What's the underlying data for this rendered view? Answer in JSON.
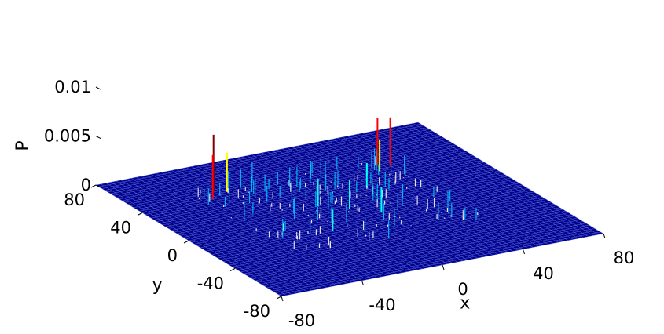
{
  "chart_data": {
    "type": "surface",
    "title": "",
    "xlabel": "x",
    "ylabel": "y",
    "zlabel": "P",
    "xlim": [
      -80,
      80
    ],
    "ylim": [
      -80,
      80
    ],
    "zlim": [
      0,
      0.01
    ],
    "x_ticks": [
      {
        "value": -80,
        "label": "-80"
      },
      {
        "value": -40,
        "label": "-40"
      },
      {
        "value": 0,
        "label": "0"
      },
      {
        "value": 40,
        "label": "40"
      },
      {
        "value": 80,
        "label": "80"
      }
    ],
    "y_ticks": [
      {
        "value": -80,
        "label": "-80"
      },
      {
        "value": -40,
        "label": "-40"
      },
      {
        "value": 0,
        "label": "0"
      },
      {
        "value": 40,
        "label": "40"
      },
      {
        "value": 80,
        "label": "80"
      }
    ],
    "z_ticks": [
      {
        "value": 0,
        "label": "0"
      },
      {
        "value": 0.005,
        "label": "0.005"
      },
      {
        "value": 0.01,
        "label": "0.01"
      }
    ],
    "background_level": 0,
    "peak_region": {
      "x_range": [
        -50,
        45
      ],
      "y_range": [
        -40,
        50
      ]
    },
    "peaks": [
      {
        "x": -40,
        "y": 48,
        "z": 0.0058
      },
      {
        "x": -45,
        "y": 40,
        "z": 0.0045
      },
      {
        "x": -35,
        "y": 45,
        "z": 0.004
      },
      {
        "x": 38,
        "y": 42,
        "z": 0.0048
      },
      {
        "x": 42,
        "y": 38,
        "z": 0.005
      },
      {
        "x": 35,
        "y": 35,
        "z": 0.0032
      },
      {
        "x": 0,
        "y": 0,
        "z": 0.003
      },
      {
        "x": -10,
        "y": 10,
        "z": 0.0028
      },
      {
        "x": 10,
        "y": -10,
        "z": 0.0026
      },
      {
        "x": -20,
        "y": -20,
        "z": 0.0022
      },
      {
        "x": 20,
        "y": 20,
        "z": 0.0025
      }
    ],
    "colormap": [
      "#00008f",
      "#0000ff",
      "#00ffff",
      "#ffff00",
      "#ff0000",
      "#800000"
    ],
    "grid": false
  }
}
